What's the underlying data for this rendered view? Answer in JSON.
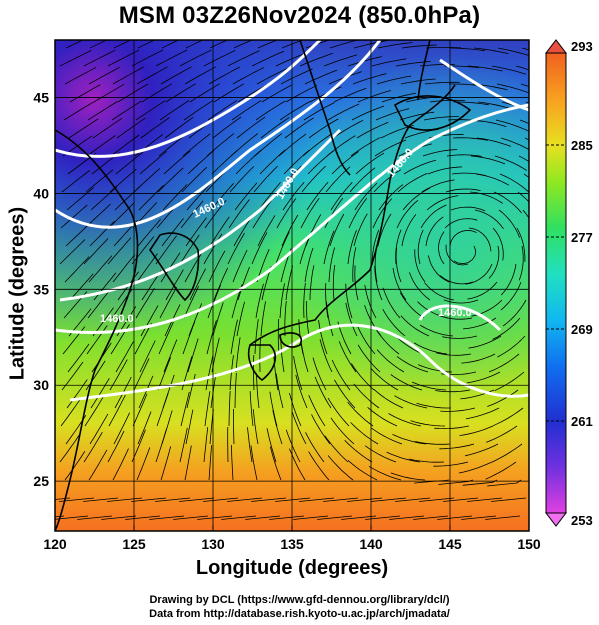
{
  "title": "MSM 03Z26Nov2024 (850.0hPa)",
  "x_axis": {
    "label": "Longitude (degrees)",
    "range": [
      120,
      150
    ],
    "ticks": [
      "120",
      "125",
      "130",
      "135",
      "140",
      "145",
      "150"
    ]
  },
  "y_axis": {
    "label": "Latitude  (degrees)",
    "range": [
      22.4,
      48
    ],
    "ticks": [
      "25",
      "30",
      "35",
      "40",
      "45"
    ]
  },
  "colorbar": {
    "ticks": [
      "293",
      "285",
      "277",
      "269",
      "261",
      "253"
    ],
    "range": [
      253,
      293
    ],
    "colors": [
      "#e040e0",
      "#9030e0",
      "#2030d0",
      "#1060e8",
      "#10b0f0",
      "#20e0d0",
      "#30e080",
      "#50e030",
      "#b0e820",
      "#f0e020",
      "#f8a020",
      "#f06020",
      "#e83020"
    ]
  },
  "contour_labels": [
    "1460.0",
    "1460.0",
    "1460.0",
    "1460.0",
    "1460.0"
  ],
  "credits": {
    "line1": "Drawing by DCL (https://www.gfd-dennou.org/library/dcl/)",
    "line2": "Data from http://database.rish.kyoto-u.ac.jp/arch/jmadata/"
  },
  "colors": {
    "gridline": "#000000",
    "contour": "#ffffff",
    "coastline": "#000000"
  }
}
